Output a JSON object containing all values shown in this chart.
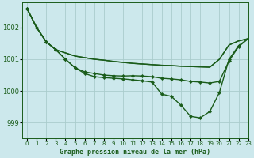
{
  "title": "Graphe pression niveau de la mer (hPa)",
  "xlim": [
    -0.5,
    23
  ],
  "ylim": [
    998.5,
    1002.8
  ],
  "yticks": [
    999,
    1000,
    1001,
    1002
  ],
  "xtick_labels": [
    "0",
    "1",
    "2",
    "3",
    "4",
    "5",
    "6",
    "7",
    "8",
    "9",
    "10",
    "11",
    "12",
    "13",
    "14",
    "15",
    "16",
    "17",
    "18",
    "19",
    "20",
    "21",
    "22",
    "23"
  ],
  "background_color": "#cce8ec",
  "grid_color": "#aacccc",
  "line_color": "#1a5c1a",
  "series": [
    {
      "x": [
        0,
        1,
        2,
        3,
        4,
        5,
        6,
        7,
        8,
        9,
        10,
        11,
        12,
        13,
        14,
        15,
        16,
        17,
        18,
        19,
        20,
        21,
        22,
        23
      ],
      "y": [
        1002.6,
        1002.0,
        1001.55,
        1001.3,
        1001.2,
        1001.1,
        1001.05,
        1001.0,
        1000.97,
        1000.93,
        1000.9,
        1000.87,
        1000.85,
        1000.83,
        1000.81,
        1000.8,
        1000.78,
        1000.77,
        1000.76,
        1000.75,
        1001.0,
        1001.45,
        1001.58,
        1001.65
      ],
      "marker": false,
      "linewidth": 1.0
    },
    {
      "x": [
        0,
        1,
        2,
        3,
        4,
        5,
        6,
        7,
        8,
        9,
        10,
        11,
        12,
        13,
        14,
        15,
        16,
        17,
        18,
        19,
        20,
        21,
        22,
        23
      ],
      "y": [
        1002.6,
        1002.0,
        1001.55,
        1001.3,
        1001.2,
        1001.1,
        1001.05,
        1001.0,
        1000.97,
        1000.93,
        1000.9,
        1000.87,
        1000.85,
        1000.83,
        1000.81,
        1000.8,
        1000.78,
        1000.77,
        1000.76,
        1000.75,
        1001.0,
        1001.45,
        1001.58,
        1001.65
      ],
      "marker": false,
      "linewidth": 1.0
    },
    {
      "x": [
        0,
        1,
        2,
        3,
        4,
        5,
        6,
        7,
        8,
        9,
        10,
        11,
        12,
        13,
        14,
        15,
        16,
        17,
        18,
        19,
        20,
        21,
        22,
        23
      ],
      "y": [
        1002.6,
        1002.0,
        1001.55,
        1001.3,
        1001.0,
        1000.73,
        1000.6,
        1000.55,
        1000.5,
        1000.48,
        1000.47,
        1000.48,
        1000.47,
        1000.45,
        1000.4,
        1000.38,
        1000.35,
        1000.3,
        1000.28,
        1000.25,
        1000.3,
        1000.95,
        1001.4,
        1001.65
      ],
      "marker": true,
      "linewidth": 1.0
    },
    {
      "x": [
        0,
        1,
        2,
        3,
        4,
        5,
        6,
        7,
        8,
        9,
        10,
        11,
        12,
        13,
        14,
        15,
        16,
        17,
        18,
        19,
        20,
        21,
        22,
        23
      ],
      "y": [
        1002.6,
        1002.0,
        1001.55,
        1001.3,
        1001.0,
        1000.73,
        1000.55,
        1000.45,
        1000.42,
        1000.4,
        1000.38,
        1000.35,
        1000.32,
        1000.28,
        999.9,
        999.83,
        999.55,
        999.2,
        999.15,
        999.35,
        999.95,
        1001.0,
        1001.43,
        1001.65
      ],
      "marker": true,
      "linewidth": 1.0
    }
  ]
}
